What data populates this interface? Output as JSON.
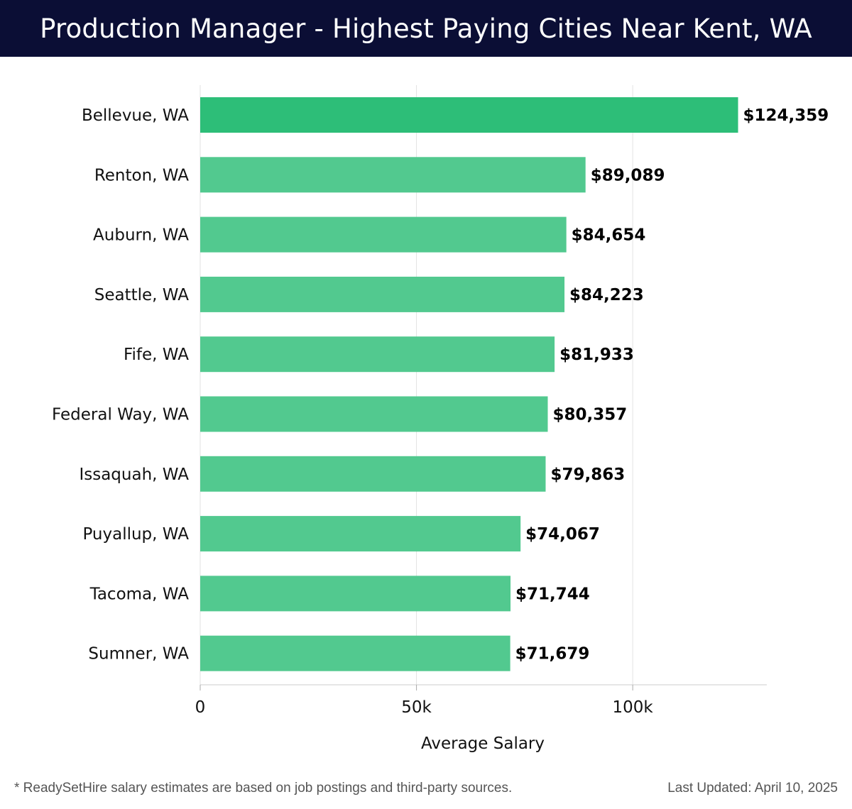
{
  "header": {
    "title": "Production Manager - Highest Paying Cities Near Kent, WA"
  },
  "colors": {
    "header_bg": "#0b0e35",
    "top_bar": "#2dbe78",
    "bar": "#52c98f",
    "gridline": "#e2e2e2",
    "axis": "#cccccc"
  },
  "chart_data": {
    "type": "bar",
    "orientation": "horizontal",
    "title": "Production Manager - Highest Paying Cities Near Kent, WA",
    "categories": [
      "Bellevue, WA",
      "Renton, WA",
      "Auburn, WA",
      "Seattle, WA",
      "Fife, WA",
      "Federal Way, WA",
      "Issaquah, WA",
      "Puyallup, WA",
      "Tacoma, WA",
      "Sumner, WA"
    ],
    "values": [
      124359,
      89089,
      84654,
      84223,
      81933,
      80357,
      79863,
      74067,
      71744,
      71679
    ],
    "value_labels": [
      "$124,359",
      "$89,089",
      "$84,654",
      "$84,223",
      "$81,933",
      "$80,357",
      "$79,863",
      "$74,067",
      "$71,744",
      "$71,679"
    ],
    "xlabel": "Average Salary",
    "ylabel": "",
    "xlim": [
      0,
      131000
    ],
    "xticks": [
      0,
      50000,
      100000
    ],
    "xtick_labels": [
      "0",
      "50k",
      "100k"
    ],
    "grid": true,
    "legend": "none"
  },
  "footer": {
    "note": "* ReadySetHire salary estimates are based on job postings and third-party sources.",
    "updated": "Last Updated: April 10, 2025"
  }
}
